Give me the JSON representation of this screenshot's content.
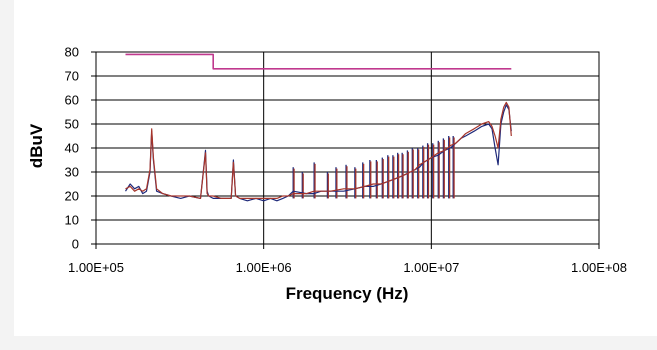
{
  "chart_data": {
    "type": "line",
    "title": "",
    "xlabel": "Frequency (Hz)",
    "ylabel": "dBuV",
    "x_scale": "log",
    "xlim": [
      100000,
      100000000
    ],
    "ylim": [
      0,
      80
    ],
    "x_ticks": [
      100000,
      1000000,
      10000000,
      100000000
    ],
    "x_tick_labels": [
      "1.00E+05",
      "1.00E+06",
      "1.00E+07",
      "1.00E+08"
    ],
    "y_ticks": [
      0,
      10,
      20,
      30,
      40,
      50,
      60,
      70,
      80
    ],
    "y_tick_labels": [
      "0",
      "10",
      "20",
      "30",
      "40",
      "50",
      "60",
      "70",
      "80"
    ],
    "grid": true,
    "legend": "none",
    "series": [
      {
        "color": "#c0398e",
        "x": [
          150000,
          500000,
          500000,
          30000000
        ],
        "y": [
          79,
          79,
          73,
          73
        ]
      },
      {
        "color": "#1f2a7a",
        "x": [
          150000,
          160000,
          170000,
          180000,
          190000,
          200000,
          210000,
          215000,
          220000,
          230000,
          250000,
          280000,
          320000,
          360000,
          420000,
          450000,
          460000,
          470000,
          500000,
          560000,
          640000,
          660000,
          680000,
          720000,
          800000,
          900000,
          1000000,
          1100000,
          1200000,
          1300000,
          1400000,
          1500000,
          1800000,
          2000000,
          2200000,
          2500000,
          3000000,
          3500000,
          4000000,
          4500000,
          5000000,
          5500000,
          6000000,
          6500000,
          7000000,
          7500000,
          8000000,
          8500000,
          9000000,
          9500000,
          10000000,
          11000000,
          12000000,
          13000000,
          14000000,
          15000000,
          16000000,
          18000000,
          20000000,
          22000000,
          23000000,
          24000000,
          25000000,
          26000000,
          27000000,
          28000000,
          29000000,
          30000000
        ],
        "y": [
          22,
          25,
          23,
          24,
          21,
          22,
          30,
          47,
          35,
          22,
          21,
          20,
          19,
          20,
          19,
          39,
          22,
          20,
          19,
          19,
          19,
          35,
          20,
          19,
          18,
          19,
          18,
          19,
          18,
          19,
          20,
          22,
          21,
          21,
          22,
          22,
          22,
          23,
          24,
          24,
          25,
          26,
          27,
          28,
          29,
          30,
          31,
          32,
          34,
          35,
          36,
          37,
          39,
          40,
          42,
          44,
          45,
          47,
          49,
          50,
          48,
          40,
          33,
          50,
          55,
          58,
          56,
          47
        ]
      },
      {
        "color": "#a6352b",
        "x": [
          150000,
          160000,
          170000,
          180000,
          190000,
          200000,
          210000,
          215000,
          220000,
          230000,
          250000,
          280000,
          320000,
          360000,
          420000,
          450000,
          460000,
          470000,
          500000,
          560000,
          640000,
          660000,
          680000,
          720000,
          800000,
          900000,
          1000000,
          1100000,
          1200000,
          1300000,
          1400000,
          1500000,
          1800000,
          2000000,
          2200000,
          2500000,
          3000000,
          3500000,
          4000000,
          4500000,
          5000000,
          5500000,
          6000000,
          6500000,
          7000000,
          7500000,
          8000000,
          8500000,
          9000000,
          9500000,
          10000000,
          11000000,
          12000000,
          13000000,
          14000000,
          15000000,
          16000000,
          18000000,
          20000000,
          22000000,
          23000000,
          24000000,
          25000000,
          26000000,
          27000000,
          28000000,
          29000000,
          30000000
        ],
        "y": [
          23,
          24,
          22,
          23,
          22,
          23,
          31,
          48,
          36,
          23,
          21,
          20,
          20,
          20,
          19,
          38,
          21,
          20,
          20,
          19,
          19,
          34,
          20,
          19,
          19,
          19,
          19,
          19,
          19,
          20,
          20,
          21,
          21,
          22,
          22,
          22,
          23,
          23,
          24,
          25,
          25,
          26,
          27,
          28,
          29,
          30,
          31,
          33,
          34,
          35,
          36,
          38,
          39,
          41,
          42,
          44,
          46,
          48,
          50,
          51,
          49,
          45,
          40,
          52,
          57,
          59,
          57,
          45
        ]
      }
    ],
    "spikes": [
      {
        "x": 1500000,
        "top": 32
      },
      {
        "x": 1700000,
        "top": 30
      },
      {
        "x": 2000000,
        "top": 34
      },
      {
        "x": 2400000,
        "top": 30
      },
      {
        "x": 2700000,
        "top": 32
      },
      {
        "x": 3100000,
        "top": 33
      },
      {
        "x": 3500000,
        "top": 32
      },
      {
        "x": 3900000,
        "top": 34
      },
      {
        "x": 4300000,
        "top": 35
      },
      {
        "x": 4700000,
        "top": 35
      },
      {
        "x": 5100000,
        "top": 36
      },
      {
        "x": 5500000,
        "top": 37
      },
      {
        "x": 5900000,
        "top": 37
      },
      {
        "x": 6300000,
        "top": 38
      },
      {
        "x": 6700000,
        "top": 38
      },
      {
        "x": 7200000,
        "top": 39
      },
      {
        "x": 7700000,
        "top": 40
      },
      {
        "x": 8300000,
        "top": 40
      },
      {
        "x": 8900000,
        "top": 41
      },
      {
        "x": 9500000,
        "top": 42
      },
      {
        "x": 10200000,
        "top": 42
      },
      {
        "x": 11000000,
        "top": 43
      },
      {
        "x": 11800000,
        "top": 44
      },
      {
        "x": 12700000,
        "top": 45
      },
      {
        "x": 13500000,
        "top": 45
      }
    ]
  }
}
